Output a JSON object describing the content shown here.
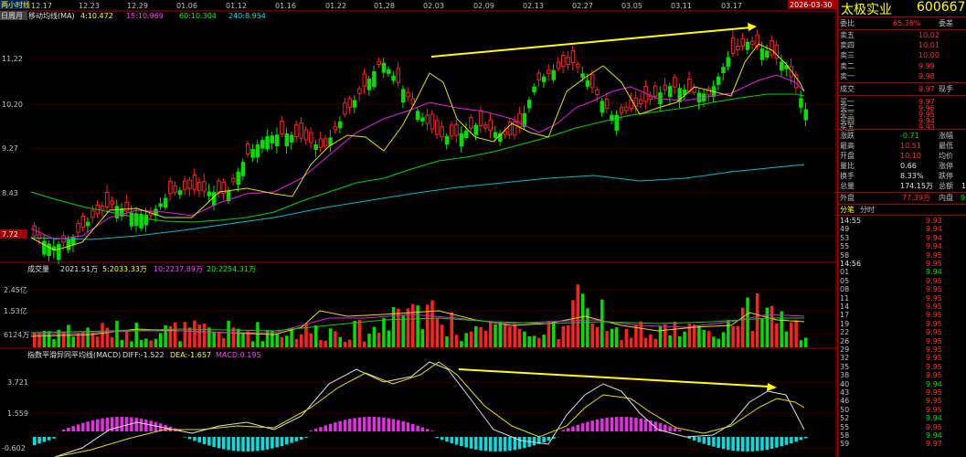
{
  "main": {
    "period_label": "日周月",
    "indicator_label": "移动均线(MA)",
    "ma": [
      {
        "label": "4:10.472",
        "color": "#ffff00"
      },
      {
        "label": "15:10.969",
        "color": "#ff40ff"
      },
      {
        "label": "60:10.304",
        "color": "#00ff00"
      },
      {
        "label": "240:8.954",
        "color": "#00e0e0"
      }
    ],
    "cursor_label": "两小时线",
    "price_ticks": [
      "11.22",
      "10.20",
      "9.27",
      "8.43",
      "7.72"
    ],
    "date_ticks": [
      "12.17",
      "12.23",
      "12.29",
      "01.06",
      "01.12",
      "01.16",
      "01.22",
      "01.28",
      "02.03",
      "02.09",
      "02.13",
      "02.27",
      "03.05",
      "03.11",
      "03.17"
    ],
    "date_badge": "2026-03-30"
  },
  "volume": {
    "title": "成交量",
    "total": "2021.51万",
    "ma": [
      {
        "label": "5:2033.33万",
        "color": "#ffff00"
      },
      {
        "label": "10:2237.89万",
        "color": "#ff40ff"
      },
      {
        "label": "20:2254.31万",
        "color": "#00ff00"
      }
    ],
    "ticks": [
      "2.45亿",
      "1.53亿",
      "6124万"
    ]
  },
  "macd": {
    "title": "指数平滑异同平均线(MACD)",
    "diff": "DIFF:-1.522",
    "dea": "DEA:-1.657",
    "macd": "MACD:0.195",
    "ticks": [
      "3.721",
      "1.559",
      "-0.602"
    ]
  },
  "panel": {
    "name": "太极实业",
    "code": "600667",
    "weibi_label": "委比",
    "weibi_value": "65.36%",
    "weicha_label": "委差",
    "sell": [
      {
        "label": "卖五",
        "price": "10.02"
      },
      {
        "label": "卖四",
        "price": "10.01"
      },
      {
        "label": "卖三",
        "price": "10.00"
      },
      {
        "label": "卖二",
        "price": "9.99"
      },
      {
        "label": "卖一",
        "price": "9.98"
      }
    ],
    "deal_label": "成交",
    "deal_value": "9.97",
    "now_label": "现手",
    "buy": [
      {
        "label": "买一",
        "price": "9.97"
      },
      {
        "label": "买二",
        "price": "9.96"
      },
      {
        "label": "买三",
        "price": "9.95"
      },
      {
        "label": "买四",
        "price": "9.94"
      },
      {
        "label": "买五",
        "price": "9.93"
      }
    ],
    "stats": [
      {
        "l": "涨跌",
        "v": "-0.71",
        "v_class": "green",
        "r": "涨幅"
      },
      {
        "l": "最高",
        "v": "10.51",
        "v_class": "red",
        "r": "最低"
      },
      {
        "l": "开盘",
        "v": "10.10",
        "v_class": "red",
        "r": "均价"
      },
      {
        "l": "量比",
        "v": "0.66",
        "v_class": "white",
        "r": "涨停"
      },
      {
        "l": "换手",
        "v": "8.33%",
        "v_class": "white",
        "r": "跌停"
      },
      {
        "l": "总量",
        "v": "174.15万",
        "v_class": "white",
        "r": "总额"
      }
    ],
    "stat_extra": "1",
    "waipan_label": "外盘",
    "waipan_value": "77.39万",
    "neipan_label": "内盘",
    "neipan_extra": "9",
    "tabs": [
      "分笔",
      "分时"
    ],
    "ticks": [
      {
        "t": "14:55",
        "p": "9.93",
        "c": "red"
      },
      {
        "t": "49",
        "p": "9.94",
        "c": "red"
      },
      {
        "t": "53",
        "p": "9.94",
        "c": "red"
      },
      {
        "t": "55",
        "p": "9.94",
        "c": "red"
      },
      {
        "t": "58",
        "p": "9.95",
        "c": "red"
      },
      {
        "t": "14:56",
        "p": "9.95",
        "c": "red"
      },
      {
        "t": "01",
        "p": "9.94",
        "c": "green"
      },
      {
        "t": "05",
        "p": "9.95",
        "c": "red"
      },
      {
        "t": "08",
        "p": "9.95",
        "c": "red"
      },
      {
        "t": "11",
        "p": "9.95",
        "c": "red"
      },
      {
        "t": "14",
        "p": "9.95",
        "c": "red"
      },
      {
        "t": "17",
        "p": "9.95",
        "c": "red"
      },
      {
        "t": "19",
        "p": "9.95",
        "c": "red"
      },
      {
        "t": "22",
        "p": "9.95",
        "c": "red"
      },
      {
        "t": "26",
        "p": "9.95",
        "c": "red"
      },
      {
        "t": "29",
        "p": "9.95",
        "c": "red"
      },
      {
        "t": "32",
        "p": "9.95",
        "c": "red"
      },
      {
        "t": "35",
        "p": "9.95",
        "c": "red"
      },
      {
        "t": "38",
        "p": "9.95",
        "c": "red"
      },
      {
        "t": "40",
        "p": "9.94",
        "c": "green"
      },
      {
        "t": "43",
        "p": "9.95",
        "c": "red"
      },
      {
        "t": "46",
        "p": "9.95",
        "c": "red"
      },
      {
        "t": "50",
        "p": "9.95",
        "c": "red"
      },
      {
        "t": "52",
        "p": "9.94",
        "c": "green"
      },
      {
        "t": "55",
        "p": "9.95",
        "c": "red"
      },
      {
        "t": "58",
        "p": "9.94",
        "c": "green"
      },
      {
        "t": "59",
        "p": "9.97",
        "c": "red"
      }
    ]
  }
}
